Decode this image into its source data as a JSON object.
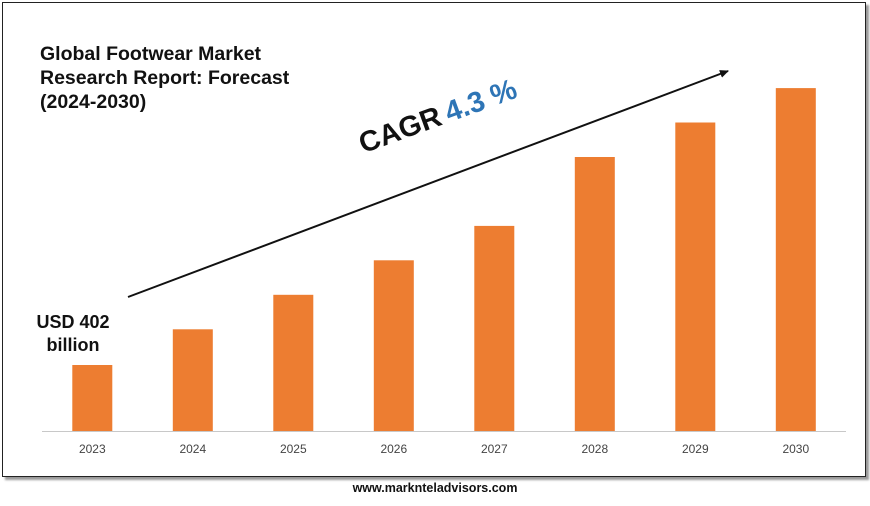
{
  "footer": {
    "url": "www.marknteladvisors.com"
  },
  "annotations": {
    "start_value_line1": "USD 402",
    "start_value_line2": "billion",
    "cagr_label": "CAGR",
    "cagr_value": "4.3 %"
  },
  "colors": {
    "bar": "#ed7d31",
    "cagr": "#2e75b6",
    "axis": "#c8c8c8"
  },
  "chart_data": {
    "type": "bar",
    "title_lines": [
      "Global Footwear Market",
      "Research Report: Forecast",
      "(2024-2030)"
    ],
    "title": "Global Footwear Market Research Report: Forecast (2024-2030)",
    "categories": [
      "2023",
      "2024",
      "2025",
      "2026",
      "2027",
      "2028",
      "2029",
      "2030"
    ],
    "values": [
      402,
      620,
      830,
      1040,
      1250,
      1670,
      1880,
      2090
    ],
    "xlabel": "",
    "ylabel": "",
    "ylim": [
      0,
      2200
    ],
    "grid": false,
    "legend": "none",
    "trend_arrow": true
  }
}
